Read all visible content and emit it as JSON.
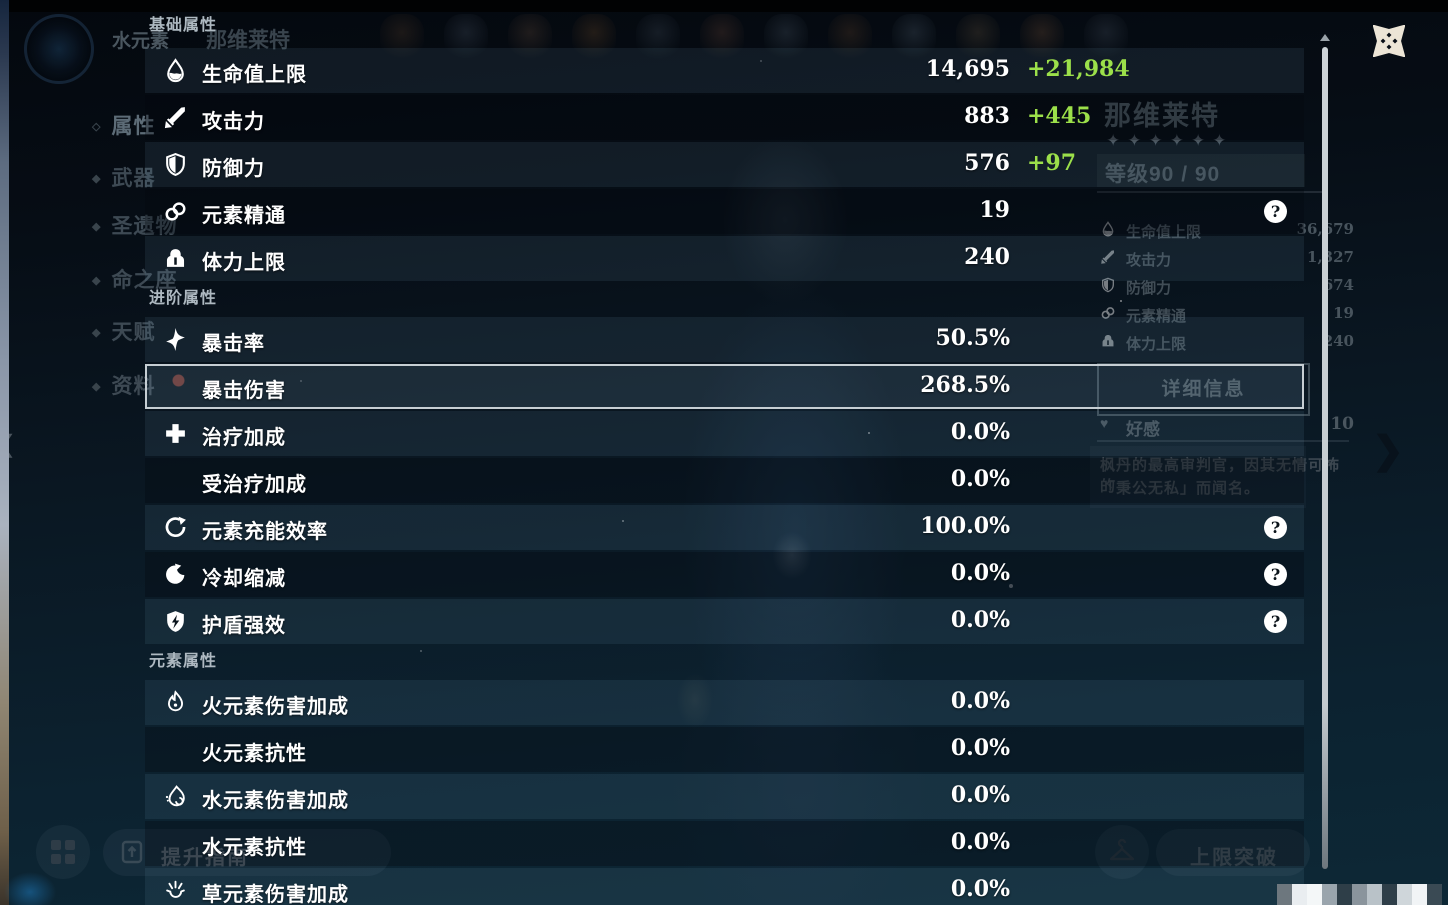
{
  "icons": {
    "help": "?",
    "star": "✦",
    "chevron_left": "❮",
    "chevron_right": "❯",
    "heart": "♥"
  },
  "colors": {
    "bonus_green": "#9ce04a",
    "selected_border": "#c6ced3",
    "scrollbar": "#c7ced2",
    "close_cream": "#ece5d6"
  },
  "panel": {
    "sections": [
      {
        "title": "基础属性",
        "rows": [
          {
            "icon": "max-hp",
            "label": "生命值上限",
            "value": "14,695",
            "bonus": "+21,984",
            "help": false
          },
          {
            "icon": "atk",
            "label": "攻击力",
            "value": "883",
            "bonus": "+445",
            "help": false
          },
          {
            "icon": "def",
            "label": "防御力",
            "value": "576",
            "bonus": "+97",
            "help": false
          },
          {
            "icon": "elemental-mastery",
            "label": "元素精通",
            "value": "19",
            "bonus": "",
            "help": true
          },
          {
            "icon": "max-stamina",
            "label": "体力上限",
            "value": "240",
            "bonus": "",
            "help": false
          }
        ]
      },
      {
        "title": "进阶属性",
        "rows": [
          {
            "icon": "crit-rate",
            "label": "暴击率",
            "value": "50.5%",
            "bonus": "",
            "help": false
          },
          {
            "icon": null,
            "label": "暴击伤害",
            "value": "268.5%",
            "bonus": "",
            "help": false,
            "selected": true
          },
          {
            "icon": "healing-bonus",
            "label": "治疗加成",
            "value": "0.0%",
            "bonus": "",
            "help": false
          },
          {
            "icon": null,
            "label": "受治疗加成",
            "value": "0.0%",
            "bonus": "",
            "help": false
          },
          {
            "icon": "energy-recharge",
            "label": "元素充能效率",
            "value": "100.0%",
            "bonus": "",
            "help": true
          },
          {
            "icon": "cd-reduction",
            "label": "冷却缩减",
            "value": "0.0%",
            "bonus": "",
            "help": true
          },
          {
            "icon": "shield-strength",
            "label": "护盾强效",
            "value": "0.0%",
            "bonus": "",
            "help": true
          }
        ]
      },
      {
        "title": "元素属性",
        "rows": [
          {
            "icon": "pyro-dmg",
            "label": "火元素伤害加成",
            "value": "0.0%",
            "bonus": "",
            "help": false
          },
          {
            "icon": null,
            "label": "火元素抗性",
            "value": "0.0%",
            "bonus": "",
            "help": false
          },
          {
            "icon": "hydro-dmg",
            "label": "水元素伤害加成",
            "value": "0.0%",
            "bonus": "",
            "help": false
          },
          {
            "icon": null,
            "label": "水元素抗性",
            "value": "0.0%",
            "bonus": "",
            "help": false
          },
          {
            "icon": "dendro-dmg",
            "label": "草元素伤害加成",
            "value": "0.0%",
            "bonus": "",
            "help": false
          }
        ]
      }
    ]
  },
  "background": {
    "top_element": "水元素",
    "top_name": "那维莱特",
    "sidebar": [
      {
        "label": "属性",
        "selected": true
      },
      {
        "label": "武器",
        "selected": false
      },
      {
        "label": "圣遗物",
        "selected": false
      },
      {
        "label": "命之座",
        "selected": false
      },
      {
        "label": "天赋",
        "selected": false
      },
      {
        "label": "资料",
        "selected": false
      }
    ],
    "name": "那维莱特",
    "stars": 6,
    "level": "等级90 / 90",
    "stats": [
      {
        "icon": "max-hp",
        "label": "生命值上限",
        "value": "36,679"
      },
      {
        "icon": "atk",
        "label": "攻击力",
        "value": "1,327"
      },
      {
        "icon": "def",
        "label": "防御力",
        "value": "674"
      },
      {
        "icon": "elemental-mastery",
        "label": "元素精通",
        "value": "19"
      },
      {
        "icon": "max-stamina",
        "label": "体力上限",
        "value": "240"
      }
    ],
    "detail_button": "详细信息",
    "friendship": {
      "label": "好感",
      "value": "10"
    },
    "description_lines": [
      "枫丹的最高审判官，因其无情可怖的",
      "「秉公无私」而闻名。"
    ],
    "promote_button": "提升指南",
    "ascend_button": "上限突破"
  }
}
